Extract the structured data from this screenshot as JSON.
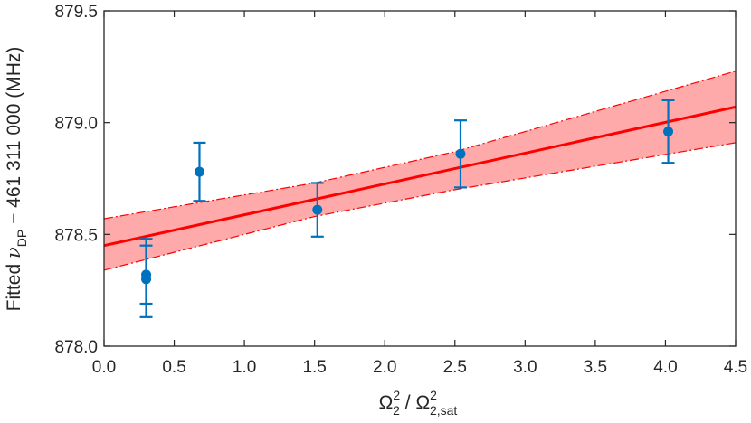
{
  "chart_data": {
    "type": "scatter",
    "title": "",
    "xlabel": {
      "main": "Ω",
      "sup1": "2",
      "sub1": "2",
      "separator": " / ",
      "main2": "Ω",
      "sup2": "2",
      "sub2": "2,sat"
    },
    "ylabel": {
      "prefix": "Fitted ",
      "symbol": "ν",
      "sub": "DP",
      "suffix": " − 461 311 000 (MHz)"
    },
    "xlim": [
      0,
      4.5
    ],
    "ylim": [
      878.0,
      879.5
    ],
    "xticks": [
      0,
      0.5,
      1,
      1.5,
      2,
      2.5,
      3,
      3.5,
      4,
      4.5
    ],
    "xtick_labels": [
      "0.0",
      "0.5",
      "1.0",
      "1.5",
      "2.0",
      "2.5",
      "3.0",
      "3.5",
      "4.0",
      "4.5"
    ],
    "yticks": [
      878.0,
      878.5,
      879.0,
      879.5
    ],
    "ytick_labels": [
      "878.0",
      "878.5",
      "879.0",
      "879.5"
    ],
    "grid": false,
    "series": [
      {
        "name": "measurements",
        "kind": "points_with_errorbars",
        "color": "#0072BD",
        "points": [
          {
            "x": 0.3,
            "y": 878.32,
            "err_low": 878.19,
            "err_high": 878.45
          },
          {
            "x": 0.3,
            "y": 878.3,
            "err_low": 878.13,
            "err_high": 878.48
          },
          {
            "x": 0.68,
            "y": 878.78,
            "err_low": 878.65,
            "err_high": 878.91
          },
          {
            "x": 1.52,
            "y": 878.61,
            "err_low": 878.49,
            "err_high": 878.73
          },
          {
            "x": 2.54,
            "y": 878.86,
            "err_low": 878.71,
            "err_high": 879.01
          },
          {
            "x": 4.02,
            "y": 878.96,
            "err_low": 878.82,
            "err_high": 879.1
          }
        ]
      },
      {
        "name": "linear fit",
        "kind": "line",
        "color": "#FF0000",
        "x": [
          0,
          4.5
        ],
        "y": [
          878.45,
          879.07
        ]
      },
      {
        "name": "confidence band",
        "kind": "band",
        "fill": "#FFAAAA",
        "edge": "#FF0000",
        "x": [
          0,
          1.5,
          2.5,
          4.5
        ],
        "lower": [
          878.34,
          878.58,
          878.7,
          878.91
        ],
        "upper": [
          878.57,
          878.73,
          878.87,
          879.23
        ]
      }
    ]
  }
}
